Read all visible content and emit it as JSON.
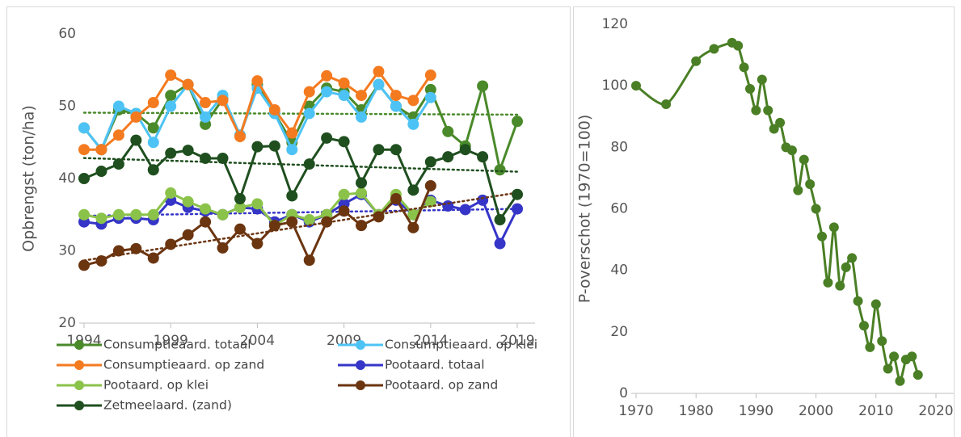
{
  "chart_data": [
    {
      "type": "line",
      "y_label": "Opbrengst (ton/ha)",
      "x": [
        1994,
        1995,
        1996,
        1997,
        1998,
        1999,
        2000,
        2001,
        2002,
        2003,
        2004,
        2005,
        2006,
        2007,
        2008,
        2009,
        2010,
        2011,
        2012,
        2013,
        2014,
        2015,
        2016,
        2017,
        2018,
        2019
      ],
      "xlim": [
        1994,
        2019
      ],
      "xticks": [
        1994,
        1999,
        2004,
        2009,
        2014,
        2019
      ],
      "ylim": [
        20,
        60
      ],
      "yticks": [
        20,
        30,
        40,
        50,
        60
      ],
      "series": [
        {
          "name": "Consumptieaard. totaal",
          "color": "#4a8a2a",
          "trendline": true,
          "values": [
            47,
            44,
            49.5,
            49,
            47,
            51.5,
            53,
            47.5,
            51,
            46,
            53,
            49,
            45,
            50,
            52.5,
            52,
            49.5,
            53,
            50,
            48.5,
            52.3,
            46.5,
            44.5,
            52.8,
            41.2,
            47.9
          ]
        },
        {
          "name": "Consumptieaard. op klei",
          "color": "#4dc3f5",
          "trendline": false,
          "values": [
            47,
            44,
            50,
            49,
            45,
            50,
            53,
            48.5,
            51.5,
            46,
            52.5,
            49,
            44,
            49,
            52,
            51.5,
            48.5,
            53,
            50,
            47.5,
            51.2,
            null,
            null,
            null,
            null,
            null
          ]
        },
        {
          "name": "Consumptieaard. op zand",
          "color": "#f47a20",
          "trendline": false,
          "values": [
            44,
            44,
            46,
            48.5,
            50.5,
            54.3,
            53,
            50.5,
            50.8,
            45.8,
            53.5,
            49.5,
            46.3,
            52,
            54.2,
            53.2,
            51.5,
            54.8,
            51.5,
            50.8,
            54.3,
            null,
            null,
            null,
            null,
            null
          ]
        },
        {
          "name": "Pootaard. totaal",
          "color": "#3535c8",
          "trendline": true,
          "values": [
            34,
            33.7,
            34.5,
            34.5,
            34.3,
            37,
            36,
            35.5,
            35,
            36,
            35.8,
            34,
            35,
            34,
            35,
            36.5,
            37.8,
            35,
            37,
            35,
            37,
            36.2,
            35.7,
            37,
            31,
            35.8
          ]
        },
        {
          "name": "Pootaard. op klei",
          "color": "#8bc34a",
          "trendline": false,
          "values": [
            35,
            34.5,
            35,
            35,
            35,
            38,
            36.8,
            35.8,
            35,
            36,
            36.5,
            33.5,
            35,
            34.3,
            35,
            37.8,
            38,
            35,
            37.8,
            35,
            36.8,
            null,
            null,
            null,
            null,
            null
          ]
        },
        {
          "name": "Pootaard. op zand",
          "color": "#6b3510",
          "trendline": true,
          "values": [
            28,
            28.6,
            30,
            30.3,
            29,
            30.9,
            32.2,
            34,
            30.4,
            33,
            31,
            33.5,
            34,
            28.7,
            34,
            35.5,
            33.5,
            34.7,
            37.2,
            33.2,
            39,
            null,
            null,
            null,
            null,
            null
          ]
        },
        {
          "name": "Zetmeelaard. (zand)",
          "color": "#1f4f1f",
          "trendline": true,
          "values": [
            40,
            41,
            42,
            45.3,
            41.2,
            43.5,
            43.9,
            42.8,
            42.8,
            37.2,
            44.4,
            44.5,
            37.6,
            42,
            45.6,
            45.1,
            39.4,
            44,
            44,
            38.4,
            42.3,
            43,
            44,
            43,
            34.3,
            37.8
          ]
        }
      ]
    },
    {
      "type": "line",
      "y_label": "P-overschot (1970=100)",
      "smooth": true,
      "x": [
        1970,
        1975,
        1980,
        1983,
        1986,
        1987,
        1988,
        1989,
        1990,
        1991,
        1992,
        1993,
        1994,
        1995,
        1996,
        1997,
        1998,
        1999,
        2000,
        2001,
        2002,
        2003,
        2004,
        2005,
        2006,
        2007,
        2008,
        2009,
        2010,
        2011,
        2012,
        2013,
        2014,
        2015,
        2016,
        2017
      ],
      "xlim": [
        1970,
        2020
      ],
      "xticks": [
        1970,
        1980,
        1990,
        2000,
        2010,
        2020
      ],
      "ylim": [
        0,
        120
      ],
      "yticks": [
        0,
        20,
        40,
        60,
        80,
        100,
        120
      ],
      "series": [
        {
          "name": "P-overschot",
          "color": "#4a7f25",
          "values": [
            100,
            94,
            108,
            112,
            114,
            113,
            106,
            99,
            92,
            102,
            92,
            86,
            88,
            80,
            79,
            66,
            76,
            68,
            60,
            51,
            36,
            54,
            35,
            41,
            44,
            30,
            22,
            15,
            29,
            17,
            8,
            12,
            4,
            11,
            12,
            6
          ]
        }
      ]
    }
  ]
}
